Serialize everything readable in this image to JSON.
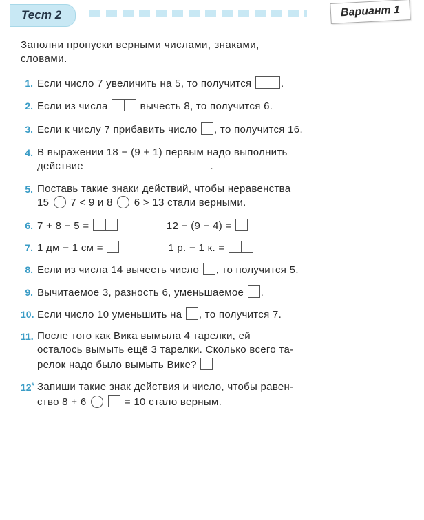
{
  "header": {
    "test_label": "Тест 2",
    "variant_label": "Вариант 1"
  },
  "instruction_l1": "Заполни пропуски верными числами, знаками,",
  "instruction_l2": "словами.",
  "items": {
    "n1": "1.",
    "q1a": "Если число 7 увеличить на 5, то получится ",
    "q1b": ".",
    "n2": "2.",
    "q2a": "Если из числа ",
    "q2b": " вычесть 8, то получится 6.",
    "n3": "3.",
    "q3a": "Если к числу 7 прибавить число ",
    "q3b": ", то получится 16.",
    "n4": "4.",
    "q4a": "В выражении  18 − (9 + 1)  первым надо выполнить",
    "q4b": "действие ",
    "q4c": ".",
    "n5": "5.",
    "q5a": "Поставь такие знаки действий, чтобы неравенства",
    "q5b": "15 ",
    "q5c": " 7 < 9  и  8 ",
    "q5d": " 6 > 13 стали верными.",
    "n6": "6.",
    "q6a": "7 + 8 − 5 = ",
    "q6b": "12 − (9 − 4) = ",
    "n7": "7.",
    "q7a": "1 дм − 1 см = ",
    "q7b": "1 р. − 1 к. = ",
    "n8": "8.",
    "q8a": "Если из числа 14 вычесть число ",
    "q8b": ", то получится 5.",
    "n9": "9.",
    "q9a": "Вычитаемое 3, разность 6, уменьшаемое ",
    "q9b": ".",
    "n10": "10.",
    "q10a": "Если число 10 уменьшить на ",
    "q10b": ", то получится 7.",
    "n11": "11.",
    "q11a": "После того как Вика вымыла 4 тарелки, ей",
    "q11b": "осталось вымыть ещё 3 тарелки. Сколько всего та-",
    "q11c": "релок надо было вымыть Вике? ",
    "n12": "12",
    "q12a": "Запиши такие знак действия и число, чтобы равен-",
    "q12b": "ство  8 + 6 ",
    "q12c": " = 10 стало верным."
  },
  "colors": {
    "number_color": "#3a9cc6",
    "header_bg": "#c8e8f4",
    "text_color": "#2a2a2a"
  }
}
